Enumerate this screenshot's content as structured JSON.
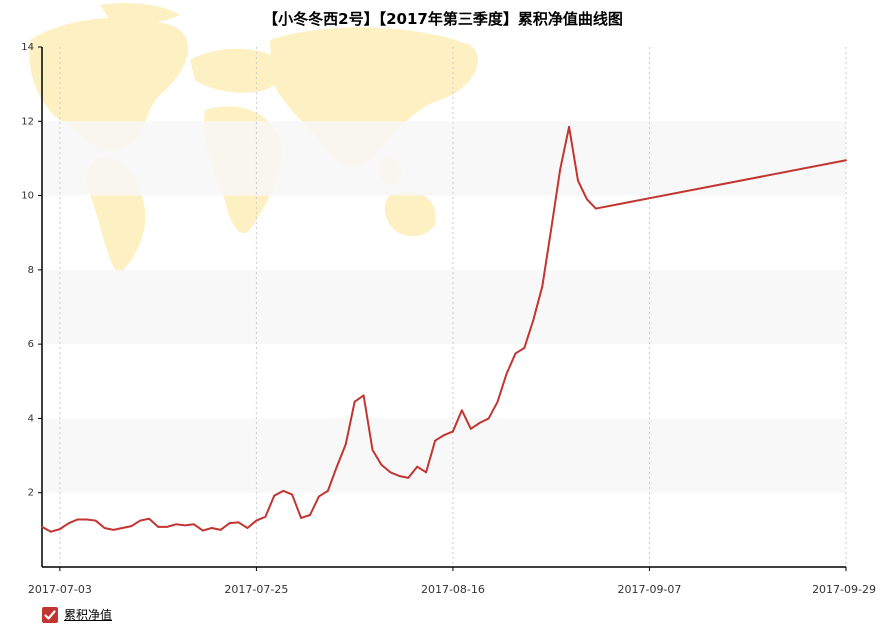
{
  "chart_data": {
    "type": "line",
    "title": "【小冬冬西2号】【2017年第三季度】累积净值曲线图",
    "xlabel": "",
    "ylabel": "",
    "ylim": [
      0,
      14
    ],
    "yticks": [
      2,
      4,
      6,
      8,
      10,
      12,
      14
    ],
    "x_range": [
      "2017-07-01",
      "2017-09-29"
    ],
    "xticks": [
      "2017-07-03",
      "2017-07-25",
      "2017-08-16",
      "2017-09-07",
      "2017-09-29"
    ],
    "grid": "vertical dashed lines at x ticks; alternating horizontal bands",
    "legend": {
      "position": "bottom-left"
    },
    "colors": {
      "line": "#c23531",
      "band": "#f7f7f7",
      "map": "#fdf1c4"
    },
    "series": [
      {
        "name": "累积净值",
        "color": "#c23531",
        "points": [
          [
            "2017-07-01",
            1.08
          ],
          [
            "2017-07-02",
            0.95
          ],
          [
            "2017-07-03",
            1.02
          ],
          [
            "2017-07-04",
            1.18
          ],
          [
            "2017-07-05",
            1.28
          ],
          [
            "2017-07-06",
            1.28
          ],
          [
            "2017-07-07",
            1.25
          ],
          [
            "2017-07-08",
            1.05
          ],
          [
            "2017-07-09",
            1.0
          ],
          [
            "2017-07-10",
            1.05
          ],
          [
            "2017-07-11",
            1.1
          ],
          [
            "2017-07-12",
            1.25
          ],
          [
            "2017-07-13",
            1.3
          ],
          [
            "2017-07-14",
            1.08
          ],
          [
            "2017-07-15",
            1.08
          ],
          [
            "2017-07-16",
            1.15
          ],
          [
            "2017-07-17",
            1.12
          ],
          [
            "2017-07-18",
            1.15
          ],
          [
            "2017-07-19",
            0.98
          ],
          [
            "2017-07-20",
            1.05
          ],
          [
            "2017-07-21",
            1.0
          ],
          [
            "2017-07-22",
            1.18
          ],
          [
            "2017-07-23",
            1.2
          ],
          [
            "2017-07-24",
            1.05
          ],
          [
            "2017-07-25",
            1.25
          ],
          [
            "2017-07-26",
            1.35
          ],
          [
            "2017-07-27",
            1.92
          ],
          [
            "2017-07-28",
            2.05
          ],
          [
            "2017-07-29",
            1.95
          ],
          [
            "2017-07-30",
            1.32
          ],
          [
            "2017-07-31",
            1.4
          ],
          [
            "2017-08-01",
            1.9
          ],
          [
            "2017-08-02",
            2.05
          ],
          [
            "2017-08-03",
            2.7
          ],
          [
            "2017-08-04",
            3.3
          ],
          [
            "2017-08-05",
            4.45
          ],
          [
            "2017-08-06",
            4.62
          ],
          [
            "2017-08-07",
            3.15
          ],
          [
            "2017-08-08",
            2.75
          ],
          [
            "2017-08-09",
            2.55
          ],
          [
            "2017-08-10",
            2.45
          ],
          [
            "2017-08-11",
            2.4
          ],
          [
            "2017-08-12",
            2.7
          ],
          [
            "2017-08-13",
            2.55
          ],
          [
            "2017-08-14",
            3.4
          ],
          [
            "2017-08-15",
            3.55
          ],
          [
            "2017-08-16",
            3.65
          ],
          [
            "2017-08-17",
            4.22
          ],
          [
            "2017-08-18",
            3.72
          ],
          [
            "2017-08-19",
            3.88
          ],
          [
            "2017-08-20",
            4.0
          ],
          [
            "2017-08-21",
            4.45
          ],
          [
            "2017-08-22",
            5.2
          ],
          [
            "2017-08-23",
            5.75
          ],
          [
            "2017-08-24",
            5.9
          ],
          [
            "2017-08-25",
            6.65
          ],
          [
            "2017-08-26",
            7.55
          ],
          [
            "2017-08-27",
            9.1
          ],
          [
            "2017-08-28",
            10.7
          ],
          [
            "2017-08-29",
            11.85
          ],
          [
            "2017-08-30",
            10.4
          ],
          [
            "2017-08-31",
            9.9
          ],
          [
            "2017-09-01",
            9.65
          ],
          [
            "2017-09-29",
            10.95
          ]
        ]
      }
    ]
  }
}
